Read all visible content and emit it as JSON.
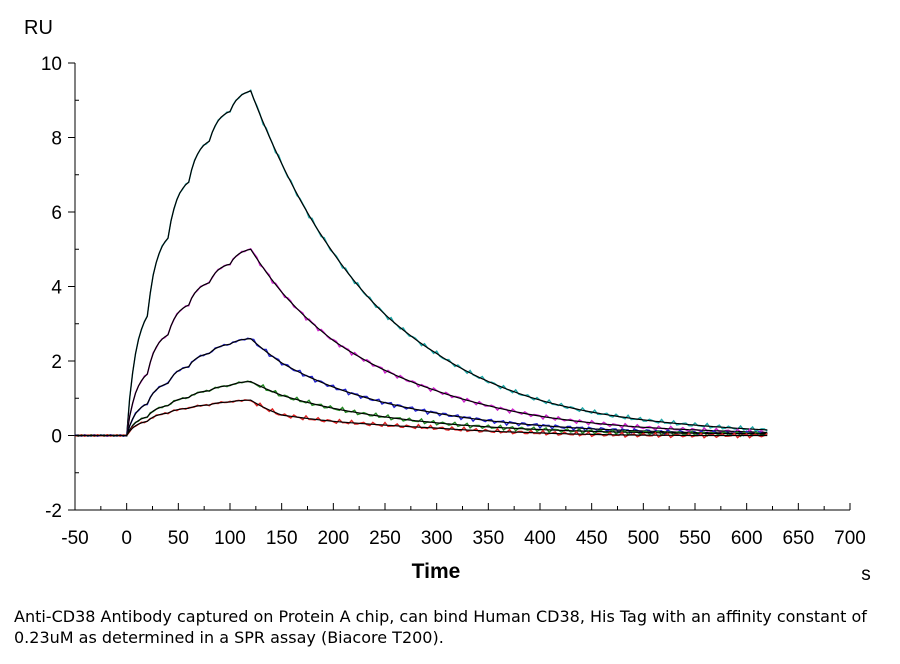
{
  "chart_data": {
    "type": "line",
    "title": "",
    "xlabel": "Time",
    "xunit": "s",
    "ylabel": "RU",
    "xlim": [
      -50,
      700
    ],
    "ylim": [
      -2,
      10
    ],
    "xticks": [
      -50,
      0,
      50,
      100,
      150,
      200,
      250,
      300,
      350,
      400,
      450,
      500,
      550,
      600,
      650,
      700
    ],
    "yticks": [
      -2,
      0,
      2,
      4,
      6,
      8,
      10
    ],
    "grid": false,
    "legend": "none",
    "association_end": 120,
    "series": [
      {
        "color": "#1fa8a8",
        "fit_color": "#000000",
        "peak": 9.25,
        "x": [
          -50,
          -25,
          0,
          20,
          40,
          60,
          80,
          100,
          120,
          150,
          200,
          250,
          300,
          350,
          400,
          450,
          500,
          550,
          600,
          620
        ],
        "y": [
          0,
          0,
          0,
          3.2,
          5.3,
          6.8,
          7.9,
          8.7,
          9.25,
          7.3,
          4.9,
          3.25,
          2.2,
          1.45,
          0.95,
          0.63,
          0.42,
          0.28,
          0.18,
          0.15
        ]
      },
      {
        "color": "#cc22cc",
        "fit_color": "#000000",
        "peak": 5.0,
        "x": [
          -50,
          -25,
          0,
          20,
          40,
          60,
          80,
          100,
          120,
          150,
          200,
          250,
          300,
          350,
          400,
          450,
          500,
          550,
          600,
          620
        ],
        "y": [
          0,
          0,
          0,
          1.65,
          2.7,
          3.5,
          4.1,
          4.6,
          5.0,
          3.85,
          2.55,
          1.75,
          1.2,
          0.8,
          0.52,
          0.34,
          0.22,
          0.15,
          0.1,
          0.08
        ]
      },
      {
        "color": "#2222cc",
        "fit_color": "#000000",
        "peak": 2.6,
        "x": [
          -50,
          -25,
          0,
          20,
          40,
          60,
          80,
          100,
          120,
          150,
          200,
          250,
          300,
          350,
          400,
          450,
          500,
          550,
          600,
          620
        ],
        "y": [
          0,
          0,
          0,
          0.85,
          1.4,
          1.85,
          2.2,
          2.45,
          2.6,
          1.95,
          1.3,
          0.88,
          0.6,
          0.4,
          0.27,
          0.18,
          0.12,
          0.08,
          0.06,
          0.05
        ]
      },
      {
        "color": "#228822",
        "fit_color": "#000000",
        "peak": 1.45,
        "x": [
          -50,
          -25,
          0,
          20,
          40,
          60,
          80,
          100,
          120,
          150,
          200,
          250,
          300,
          350,
          400,
          450,
          500,
          550,
          600,
          620
        ],
        "y": [
          0,
          0,
          0,
          0.5,
          0.8,
          1.02,
          1.2,
          1.34,
          1.45,
          1.08,
          0.73,
          0.5,
          0.34,
          0.23,
          0.16,
          0.11,
          0.08,
          0.06,
          0.05,
          0.04
        ]
      },
      {
        "color": "#dd2222",
        "fit_color": "#000000",
        "peak": 0.95,
        "x": [
          -50,
          -25,
          0,
          20,
          40,
          60,
          80,
          100,
          120,
          150,
          200,
          250,
          300,
          350,
          400,
          450,
          500,
          550,
          600,
          620
        ],
        "y": [
          0,
          0,
          0,
          0.38,
          0.6,
          0.73,
          0.82,
          0.9,
          0.95,
          0.55,
          0.38,
          0.28,
          0.2,
          0.12,
          0.07,
          0.03,
          0.01,
          0.0,
          0.0,
          0.0
        ]
      }
    ]
  },
  "caption": "Anti-CD38 Antibody captured on Protein A chip, can bind Human CD38, His Tag with an affinity constant of 0.23uM as determined in a SPR assay (Biacore T200)."
}
